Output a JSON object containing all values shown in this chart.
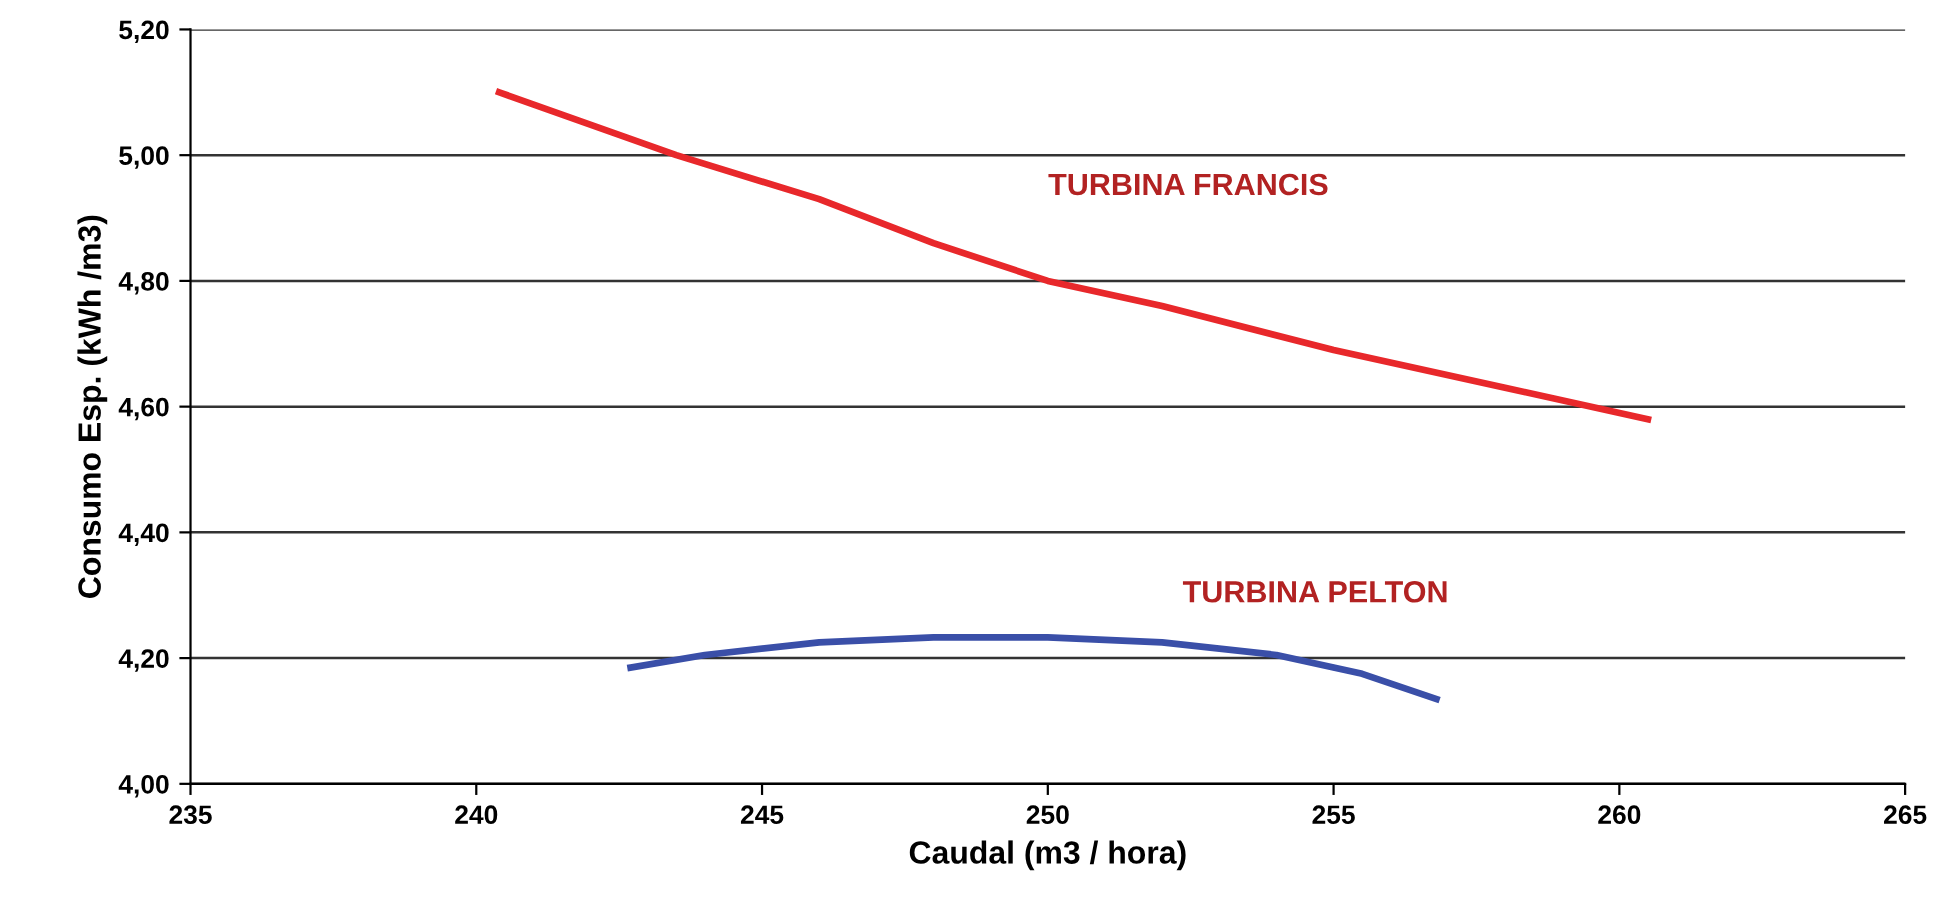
{
  "chart_data": {
    "type": "line",
    "xlabel": "Caudal (m3 / hora)",
    "ylabel": "Consumo Esp. (kWh /m3)",
    "xlim": [
      235,
      265
    ],
    "xticks": [
      235,
      240,
      245,
      250,
      255,
      260,
      265
    ],
    "ylim": [
      4.0,
      5.2
    ],
    "yticks": [
      {
        "value": 4.0,
        "label": "4,00"
      },
      {
        "value": 4.2,
        "label": "4,20"
      },
      {
        "value": 4.4,
        "label": "4,40"
      },
      {
        "value": 4.6,
        "label": "4,60"
      },
      {
        "value": 4.8,
        "label": "4,80"
      },
      {
        "value": 5.0,
        "label": "5,00"
      },
      {
        "value": 5.2,
        "label": "5,20"
      }
    ],
    "grid": "y",
    "marker": "none",
    "line_style": "solid",
    "series": [
      {
        "name": "TURBINA FRANCIS",
        "color": "#e8282b",
        "x": [
          240.4,
          243.5,
          246,
          248,
          250,
          252,
          255,
          258,
          260.5
        ],
        "values": [
          5.1,
          5.0,
          4.93,
          4.86,
          4.8,
          4.76,
          4.69,
          4.63,
          4.58
        ]
      },
      {
        "name": "TURBINA PELTON",
        "color": "#3a4fa8",
        "x": [
          242.7,
          244,
          246,
          248,
          250,
          252,
          254,
          255.5,
          256.8
        ],
        "values": [
          4.185,
          4.205,
          4.225,
          4.233,
          4.233,
          4.225,
          4.205,
          4.175,
          4.135
        ]
      }
    ]
  }
}
